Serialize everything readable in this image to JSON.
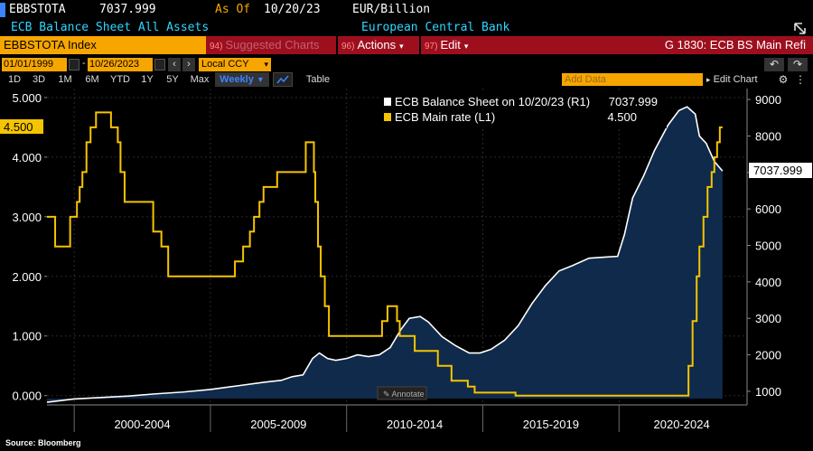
{
  "header": {
    "ticker": "EBBSTOTA",
    "last_value": "7037.999",
    "as_of_label": "As Of",
    "as_of_date": "10/20/23",
    "units": "EUR/Billion",
    "description": "ECB Balance Sheet All Assets",
    "source_name": "European Central Bank"
  },
  "command_bar": {
    "security": "EBBSTOTA Index",
    "suggested_num": "94)",
    "suggested_label": "Suggested Charts",
    "actions_num": "96)",
    "actions_label": "Actions",
    "edit_num": "97)",
    "edit_label": "Edit",
    "page_title": "G 1830: ECB BS Main Refi"
  },
  "date_range": {
    "start": "01/01/1999",
    "end": "10/26/2023",
    "currency": "Local CCY"
  },
  "toolbar": {
    "timeframes": [
      "1D",
      "3D",
      "1M",
      "6M",
      "YTD",
      "1Y",
      "5Y",
      "Max"
    ],
    "frequency": "Weekly",
    "table_label": "Table",
    "add_data_placeholder": "Add Data",
    "edit_chart_label": "Edit Chart"
  },
  "legend": {
    "items": [
      {
        "label": "ECB Balance Sheet on 10/20/23 (R1)",
        "value": "7037.999",
        "color": "#ffffff"
      },
      {
        "label": "ECB Main rate (L1)",
        "value": "4.500",
        "color": "#f5c400"
      }
    ]
  },
  "annotate_label": "Annotate",
  "source": "Source: Bloomberg",
  "colors": {
    "accent_orange": "#f7a600",
    "red_bar": "#9e0f1e",
    "cyan": "#2fd5ff",
    "rate_line": "#f5c400",
    "area_fill": "#0f2a4a"
  },
  "chart_data": {
    "type": "line",
    "x_period_labels": [
      "2000-2004",
      "2005-2009",
      "2010-2014",
      "2015-2019",
      "2020-2024"
    ],
    "left_axis": {
      "ticks": [
        "0.000",
        "1.000",
        "2.000",
        "3.000",
        "4.000",
        "5.000"
      ],
      "ylim": [
        -0.05,
        5.15
      ]
    },
    "right_axis": {
      "ticks": [
        "1000",
        "2000",
        "3000",
        "4000",
        "5000",
        "6000",
        "7000",
        "8000",
        "9000"
      ],
      "ylim": [
        800,
        9300
      ]
    },
    "last_value_tags": {
      "left": "4.500",
      "right": "7037.999"
    },
    "series": [
      {
        "name": "ECB Main rate (L1)",
        "axis": "left",
        "step": true,
        "points": [
          [
            1999.0,
            3.0
          ],
          [
            1999.3,
            2.5
          ],
          [
            1999.85,
            3.0
          ],
          [
            2000.1,
            3.25
          ],
          [
            2000.2,
            3.5
          ],
          [
            2000.3,
            3.75
          ],
          [
            2000.45,
            4.25
          ],
          [
            2000.6,
            4.5
          ],
          [
            2000.8,
            4.75
          ],
          [
            2001.35,
            4.5
          ],
          [
            2001.6,
            4.25
          ],
          [
            2001.7,
            3.75
          ],
          [
            2001.85,
            3.25
          ],
          [
            2002.9,
            2.75
          ],
          [
            2003.2,
            2.5
          ],
          [
            2003.45,
            2.0
          ],
          [
            2005.9,
            2.25
          ],
          [
            2006.2,
            2.5
          ],
          [
            2006.45,
            2.75
          ],
          [
            2006.6,
            3.0
          ],
          [
            2006.8,
            3.25
          ],
          [
            2006.95,
            3.5
          ],
          [
            2007.45,
            3.75
          ],
          [
            2007.9,
            3.75
          ],
          [
            2008.5,
            4.25
          ],
          [
            2008.8,
            3.75
          ],
          [
            2008.85,
            3.25
          ],
          [
            2008.95,
            2.5
          ],
          [
            2009.05,
            2.0
          ],
          [
            2009.2,
            1.5
          ],
          [
            2009.35,
            1.0
          ],
          [
            2011.3,
            1.25
          ],
          [
            2011.5,
            1.5
          ],
          [
            2011.85,
            1.25
          ],
          [
            2011.95,
            1.0
          ],
          [
            2012.5,
            0.75
          ],
          [
            2013.35,
            0.5
          ],
          [
            2013.85,
            0.25
          ],
          [
            2014.45,
            0.15
          ],
          [
            2014.7,
            0.05
          ],
          [
            2016.2,
            0.0
          ],
          [
            2022.55,
            0.5
          ],
          [
            2022.7,
            1.25
          ],
          [
            2022.85,
            2.0
          ],
          [
            2022.95,
            2.5
          ],
          [
            2023.1,
            3.0
          ],
          [
            2023.25,
            3.5
          ],
          [
            2023.4,
            3.75
          ],
          [
            2023.5,
            4.0
          ],
          [
            2023.6,
            4.25
          ],
          [
            2023.7,
            4.5
          ]
        ]
      },
      {
        "name": "ECB Balance Sheet",
        "axis": "right",
        "step": false,
        "points": [
          [
            1999.0,
            700
          ],
          [
            2000.0,
            790
          ],
          [
            2001.0,
            830
          ],
          [
            2002.0,
            870
          ],
          [
            2003.0,
            930
          ],
          [
            2004.0,
            980
          ],
          [
            2005.0,
            1050
          ],
          [
            2006.0,
            1150
          ],
          [
            2007.0,
            1250
          ],
          [
            2007.6,
            1300
          ],
          [
            2008.0,
            1400
          ],
          [
            2008.4,
            1450
          ],
          [
            2008.75,
            1900
          ],
          [
            2009.0,
            2050
          ],
          [
            2009.3,
            1900
          ],
          [
            2009.6,
            1850
          ],
          [
            2010.0,
            1900
          ],
          [
            2010.4,
            2000
          ],
          [
            2010.8,
            1950
          ],
          [
            2011.2,
            2000
          ],
          [
            2011.6,
            2200
          ],
          [
            2012.0,
            2700
          ],
          [
            2012.3,
            3000
          ],
          [
            2012.7,
            3050
          ],
          [
            2013.0,
            2900
          ],
          [
            2013.5,
            2500
          ],
          [
            2014.0,
            2250
          ],
          [
            2014.5,
            2050
          ],
          [
            2014.9,
            2050
          ],
          [
            2015.3,
            2150
          ],
          [
            2015.8,
            2400
          ],
          [
            2016.3,
            2800
          ],
          [
            2016.8,
            3400
          ],
          [
            2017.3,
            3900
          ],
          [
            2017.8,
            4300
          ],
          [
            2018.3,
            4450
          ],
          [
            2018.9,
            4650
          ],
          [
            2019.5,
            4680
          ],
          [
            2019.95,
            4700
          ],
          [
            2020.2,
            5300
          ],
          [
            2020.5,
            6300
          ],
          [
            2020.9,
            6900
          ],
          [
            2021.3,
            7600
          ],
          [
            2021.8,
            8300
          ],
          [
            2022.2,
            8700
          ],
          [
            2022.5,
            8800
          ],
          [
            2022.8,
            8600
          ],
          [
            2022.95,
            8000
          ],
          [
            2023.2,
            7800
          ],
          [
            2023.5,
            7300
          ],
          [
            2023.8,
            7037.999
          ]
        ]
      }
    ]
  }
}
